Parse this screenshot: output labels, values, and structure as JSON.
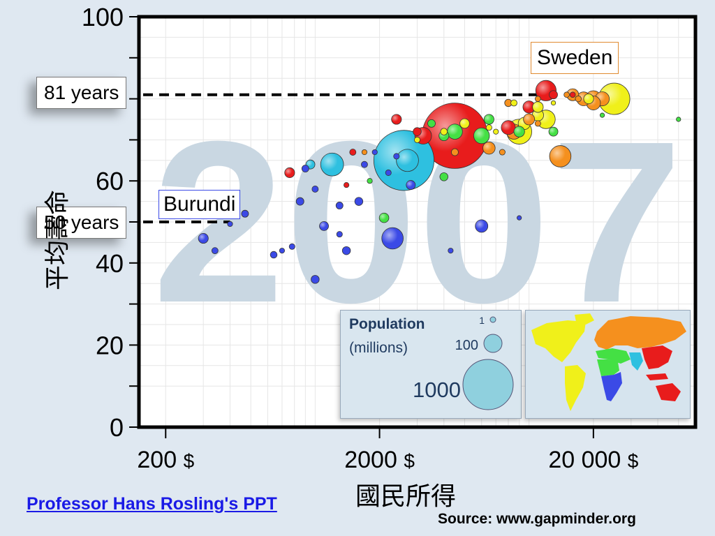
{
  "chart_data": {
    "type": "scatter",
    "year_watermark": "2007",
    "xlabel": "國民所得",
    "ylabel": "平均壽命",
    "x_scale": "log",
    "xlim": [
      150,
      60000
    ],
    "ylim": [
      0,
      100
    ],
    "yticks": [
      {
        "value": 0,
        "label": "0"
      },
      {
        "value": 20,
        "label": "20"
      },
      {
        "value": 40,
        "label": "40"
      },
      {
        "value": 60,
        "label": "60"
      },
      {
        "value": 100,
        "label": "100"
      }
    ],
    "xticks": [
      {
        "value": 200,
        "label": "200",
        "unit": "$"
      },
      {
        "value": 2000,
        "label": "2000",
        "unit": "$"
      },
      {
        "value": 20000,
        "label": "20 000",
        "unit": "$"
      }
    ],
    "grid": true,
    "reference_lines": [
      {
        "label": "81 years",
        "value": 81,
        "country": "Sweden",
        "x_end": 11000
      },
      {
        "label": "50 years",
        "value": 50,
        "country": "Burundi",
        "x_end": 400
      }
    ],
    "callouts": [
      {
        "label": "Sweden",
        "x": 12000,
        "y": 81
      },
      {
        "label": "Burundi",
        "x": 400,
        "y": 49.5
      }
    ],
    "size_legend": {
      "title": "Population",
      "subtitle": "(millions)",
      "entries": [
        {
          "label": "1",
          "value": 1
        },
        {
          "label": "100",
          "value": 100
        },
        {
          "label": "1000",
          "value": 1000
        }
      ]
    },
    "region_colors": {
      "sub_saharan_africa": "#3b4ae6",
      "south_asia": "#2ec0e0",
      "east_asia_pacific": "#e81c1c",
      "americas": "#f0f01a",
      "europe_central_asia": "#f5901e",
      "middle_east_north_africa": "#44e044"
    },
    "points": [
      {
        "x": 1000,
        "y": 36,
        "pop": 20,
        "region": "sub_saharan_africa"
      },
      {
        "x": 2300,
        "y": 46,
        "pop": 140,
        "region": "sub_saharan_africa"
      },
      {
        "x": 6000,
        "y": 49,
        "pop": 48,
        "region": "sub_saharan_africa"
      },
      {
        "x": 1400,
        "y": 43,
        "pop": 20,
        "region": "sub_saharan_africa"
      },
      {
        "x": 1100,
        "y": 49,
        "pop": 25,
        "region": "sub_saharan_africa"
      },
      {
        "x": 300,
        "y": 46,
        "pop": 30,
        "region": "sub_saharan_africa"
      },
      {
        "x": 340,
        "y": 43,
        "pop": 12,
        "region": "sub_saharan_africa"
      },
      {
        "x": 1600,
        "y": 55,
        "pop": 20,
        "region": "sub_saharan_africa"
      },
      {
        "x": 2800,
        "y": 59,
        "pop": 25,
        "region": "sub_saharan_africa"
      },
      {
        "x": 1300,
        "y": 54,
        "pop": 15,
        "region": "sub_saharan_africa"
      },
      {
        "x": 850,
        "y": 55,
        "pop": 18,
        "region": "sub_saharan_africa"
      },
      {
        "x": 1000,
        "y": 58,
        "pop": 12,
        "region": "sub_saharan_africa"
      },
      {
        "x": 1700,
        "y": 64,
        "pop": 12,
        "region": "sub_saharan_africa"
      },
      {
        "x": 900,
        "y": 63,
        "pop": 15,
        "region": "sub_saharan_africa"
      },
      {
        "x": 640,
        "y": 42,
        "pop": 14,
        "region": "sub_saharan_africa"
      },
      {
        "x": 700,
        "y": 43,
        "pop": 8,
        "region": "sub_saharan_africa"
      },
      {
        "x": 1300,
        "y": 47,
        "pop": 10,
        "region": "sub_saharan_africa"
      },
      {
        "x": 2200,
        "y": 62,
        "pop": 10,
        "region": "sub_saharan_africa"
      },
      {
        "x": 470,
        "y": 52,
        "pop": 15,
        "region": "sub_saharan_africa"
      },
      {
        "x": 4300,
        "y": 43,
        "pop": 8,
        "region": "sub_saharan_africa"
      },
      {
        "x": 780,
        "y": 44,
        "pop": 10,
        "region": "sub_saharan_africa"
      },
      {
        "x": 9000,
        "y": 51,
        "pop": 5,
        "region": "sub_saharan_africa"
      },
      {
        "x": 2400,
        "y": 66,
        "pop": 10,
        "region": "sub_saharan_africa"
      },
      {
        "x": 1900,
        "y": 67,
        "pop": 8,
        "region": "sub_saharan_africa"
      },
      {
        "x": 400,
        "y": 49.5,
        "pop": 8,
        "region": "sub_saharan_africa"
      },
      {
        "x": 2600,
        "y": 65,
        "pop": 1100,
        "region": "south_asia"
      },
      {
        "x": 1200,
        "y": 64,
        "pop": 160,
        "region": "south_asia"
      },
      {
        "x": 950,
        "y": 64,
        "pop": 25,
        "region": "south_asia"
      },
      {
        "x": 2700,
        "y": 65,
        "pop": 150,
        "region": "south_asia"
      },
      {
        "x": 4500,
        "y": 71,
        "pop": 1300,
        "region": "east_asia_pacific"
      },
      {
        "x": 3200,
        "y": 71,
        "pop": 85,
        "region": "east_asia_pacific"
      },
      {
        "x": 760,
        "y": 62,
        "pop": 30,
        "region": "east_asia_pacific"
      },
      {
        "x": 12000,
        "y": 82,
        "pop": 127,
        "region": "east_asia_pacific"
      },
      {
        "x": 1500,
        "y": 67,
        "pop": 12,
        "region": "east_asia_pacific"
      },
      {
        "x": 2400,
        "y": 75,
        "pop": 30,
        "region": "east_asia_pacific"
      },
      {
        "x": 1400,
        "y": 59,
        "pop": 8,
        "region": "east_asia_pacific"
      },
      {
        "x": 8000,
        "y": 73,
        "pop": 60,
        "region": "east_asia_pacific"
      },
      {
        "x": 10000,
        "y": 78,
        "pop": 45,
        "region": "east_asia_pacific"
      },
      {
        "x": 13000,
        "y": 81,
        "pop": 21,
        "region": "east_asia_pacific"
      },
      {
        "x": 3000,
        "y": 72,
        "pop": 20,
        "region": "east_asia_pacific"
      },
      {
        "x": 16000,
        "y": 81,
        "pop": 9,
        "region": "east_asia_pacific"
      },
      {
        "x": 25000,
        "y": 80,
        "pop": 300,
        "region": "americas"
      },
      {
        "x": 9000,
        "y": 72,
        "pop": 190,
        "region": "americas"
      },
      {
        "x": 12000,
        "y": 75,
        "pop": 105,
        "region": "americas"
      },
      {
        "x": 9500,
        "y": 74,
        "pop": 45,
        "region": "americas"
      },
      {
        "x": 11000,
        "y": 76,
        "pop": 40,
        "region": "americas"
      },
      {
        "x": 11000,
        "y": 78,
        "pop": 35,
        "region": "americas"
      },
      {
        "x": 5000,
        "y": 74,
        "pop": 28,
        "region": "americas"
      },
      {
        "x": 4000,
        "y": 72,
        "pop": 14,
        "region": "americas"
      },
      {
        "x": 6500,
        "y": 73,
        "pop": 10,
        "region": "americas"
      },
      {
        "x": 3000,
        "y": 70,
        "pop": 10,
        "region": "americas"
      },
      {
        "x": 19000,
        "y": 80,
        "pop": 30,
        "region": "americas"
      },
      {
        "x": 7000,
        "y": 72,
        "pop": 8,
        "region": "americas"
      },
      {
        "x": 13000,
        "y": 79,
        "pop": 4,
        "region": "americas"
      },
      {
        "x": 8500,
        "y": 79,
        "pop": 12,
        "region": "americas"
      },
      {
        "x": 22000,
        "y": 80,
        "pop": 60,
        "region": "europe_central_asia"
      },
      {
        "x": 20000,
        "y": 80,
        "pop": 80,
        "region": "europe_central_asia"
      },
      {
        "x": 14000,
        "y": 66,
        "pop": 140,
        "region": "europe_central_asia"
      },
      {
        "x": 8500,
        "y": 72,
        "pop": 70,
        "region": "europe_central_asia"
      },
      {
        "x": 20000,
        "y": 79,
        "pop": 60,
        "region": "europe_central_asia"
      },
      {
        "x": 18000,
        "y": 80,
        "pop": 58,
        "region": "europe_central_asia"
      },
      {
        "x": 16000,
        "y": 81,
        "pop": 44,
        "region": "europe_central_asia"
      },
      {
        "x": 10000,
        "y": 75,
        "pop": 38,
        "region": "europe_central_asia"
      },
      {
        "x": 6500,
        "y": 68,
        "pop": 46,
        "region": "europe_central_asia"
      },
      {
        "x": 4500,
        "y": 67,
        "pop": 15,
        "region": "europe_central_asia"
      },
      {
        "x": 7500,
        "y": 67,
        "pop": 10,
        "region": "europe_central_asia"
      },
      {
        "x": 11000,
        "y": 74,
        "pop": 10,
        "region": "europe_central_asia"
      },
      {
        "x": 8000,
        "y": 79,
        "pop": 16,
        "region": "europe_central_asia"
      },
      {
        "x": 15000,
        "y": 81,
        "pop": 9,
        "region": "europe_central_asia"
      },
      {
        "x": 17000,
        "y": 80,
        "pop": 11,
        "region": "europe_central_asia"
      },
      {
        "x": 11000,
        "y": 80,
        "pop": 9,
        "region": "europe_central_asia"
      },
      {
        "x": 1700,
        "y": 67,
        "pop": 8,
        "region": "europe_central_asia"
      },
      {
        "x": 2100,
        "y": 51,
        "pop": 28,
        "region": "middle_east_north_africa"
      },
      {
        "x": 6000,
        "y": 71,
        "pop": 75,
        "region": "middle_east_north_africa"
      },
      {
        "x": 4500,
        "y": 72,
        "pop": 70,
        "region": "middle_east_north_africa"
      },
      {
        "x": 9000,
        "y": 72,
        "pop": 35,
        "region": "middle_east_north_africa"
      },
      {
        "x": 4000,
        "y": 71,
        "pop": 30,
        "region": "middle_east_north_africa"
      },
      {
        "x": 6500,
        "y": 75,
        "pop": 30,
        "region": "middle_east_north_africa"
      },
      {
        "x": 13000,
        "y": 72,
        "pop": 25,
        "region": "middle_east_north_africa"
      },
      {
        "x": 1800,
        "y": 60,
        "pop": 8,
        "region": "middle_east_north_africa"
      },
      {
        "x": 4000,
        "y": 61,
        "pop": 20,
        "region": "middle_east_north_africa"
      },
      {
        "x": 3500,
        "y": 74,
        "pop": 18,
        "region": "middle_east_north_africa"
      },
      {
        "x": 50000,
        "y": 75,
        "pop": 2,
        "region": "middle_east_north_africa"
      },
      {
        "x": 22000,
        "y": 76,
        "pop": 4,
        "region": "middle_east_north_africa"
      }
    ]
  },
  "credit": {
    "link_text": "Professor Hans Rosling's  PPT",
    "source": "Source: www.gapminder.org"
  }
}
